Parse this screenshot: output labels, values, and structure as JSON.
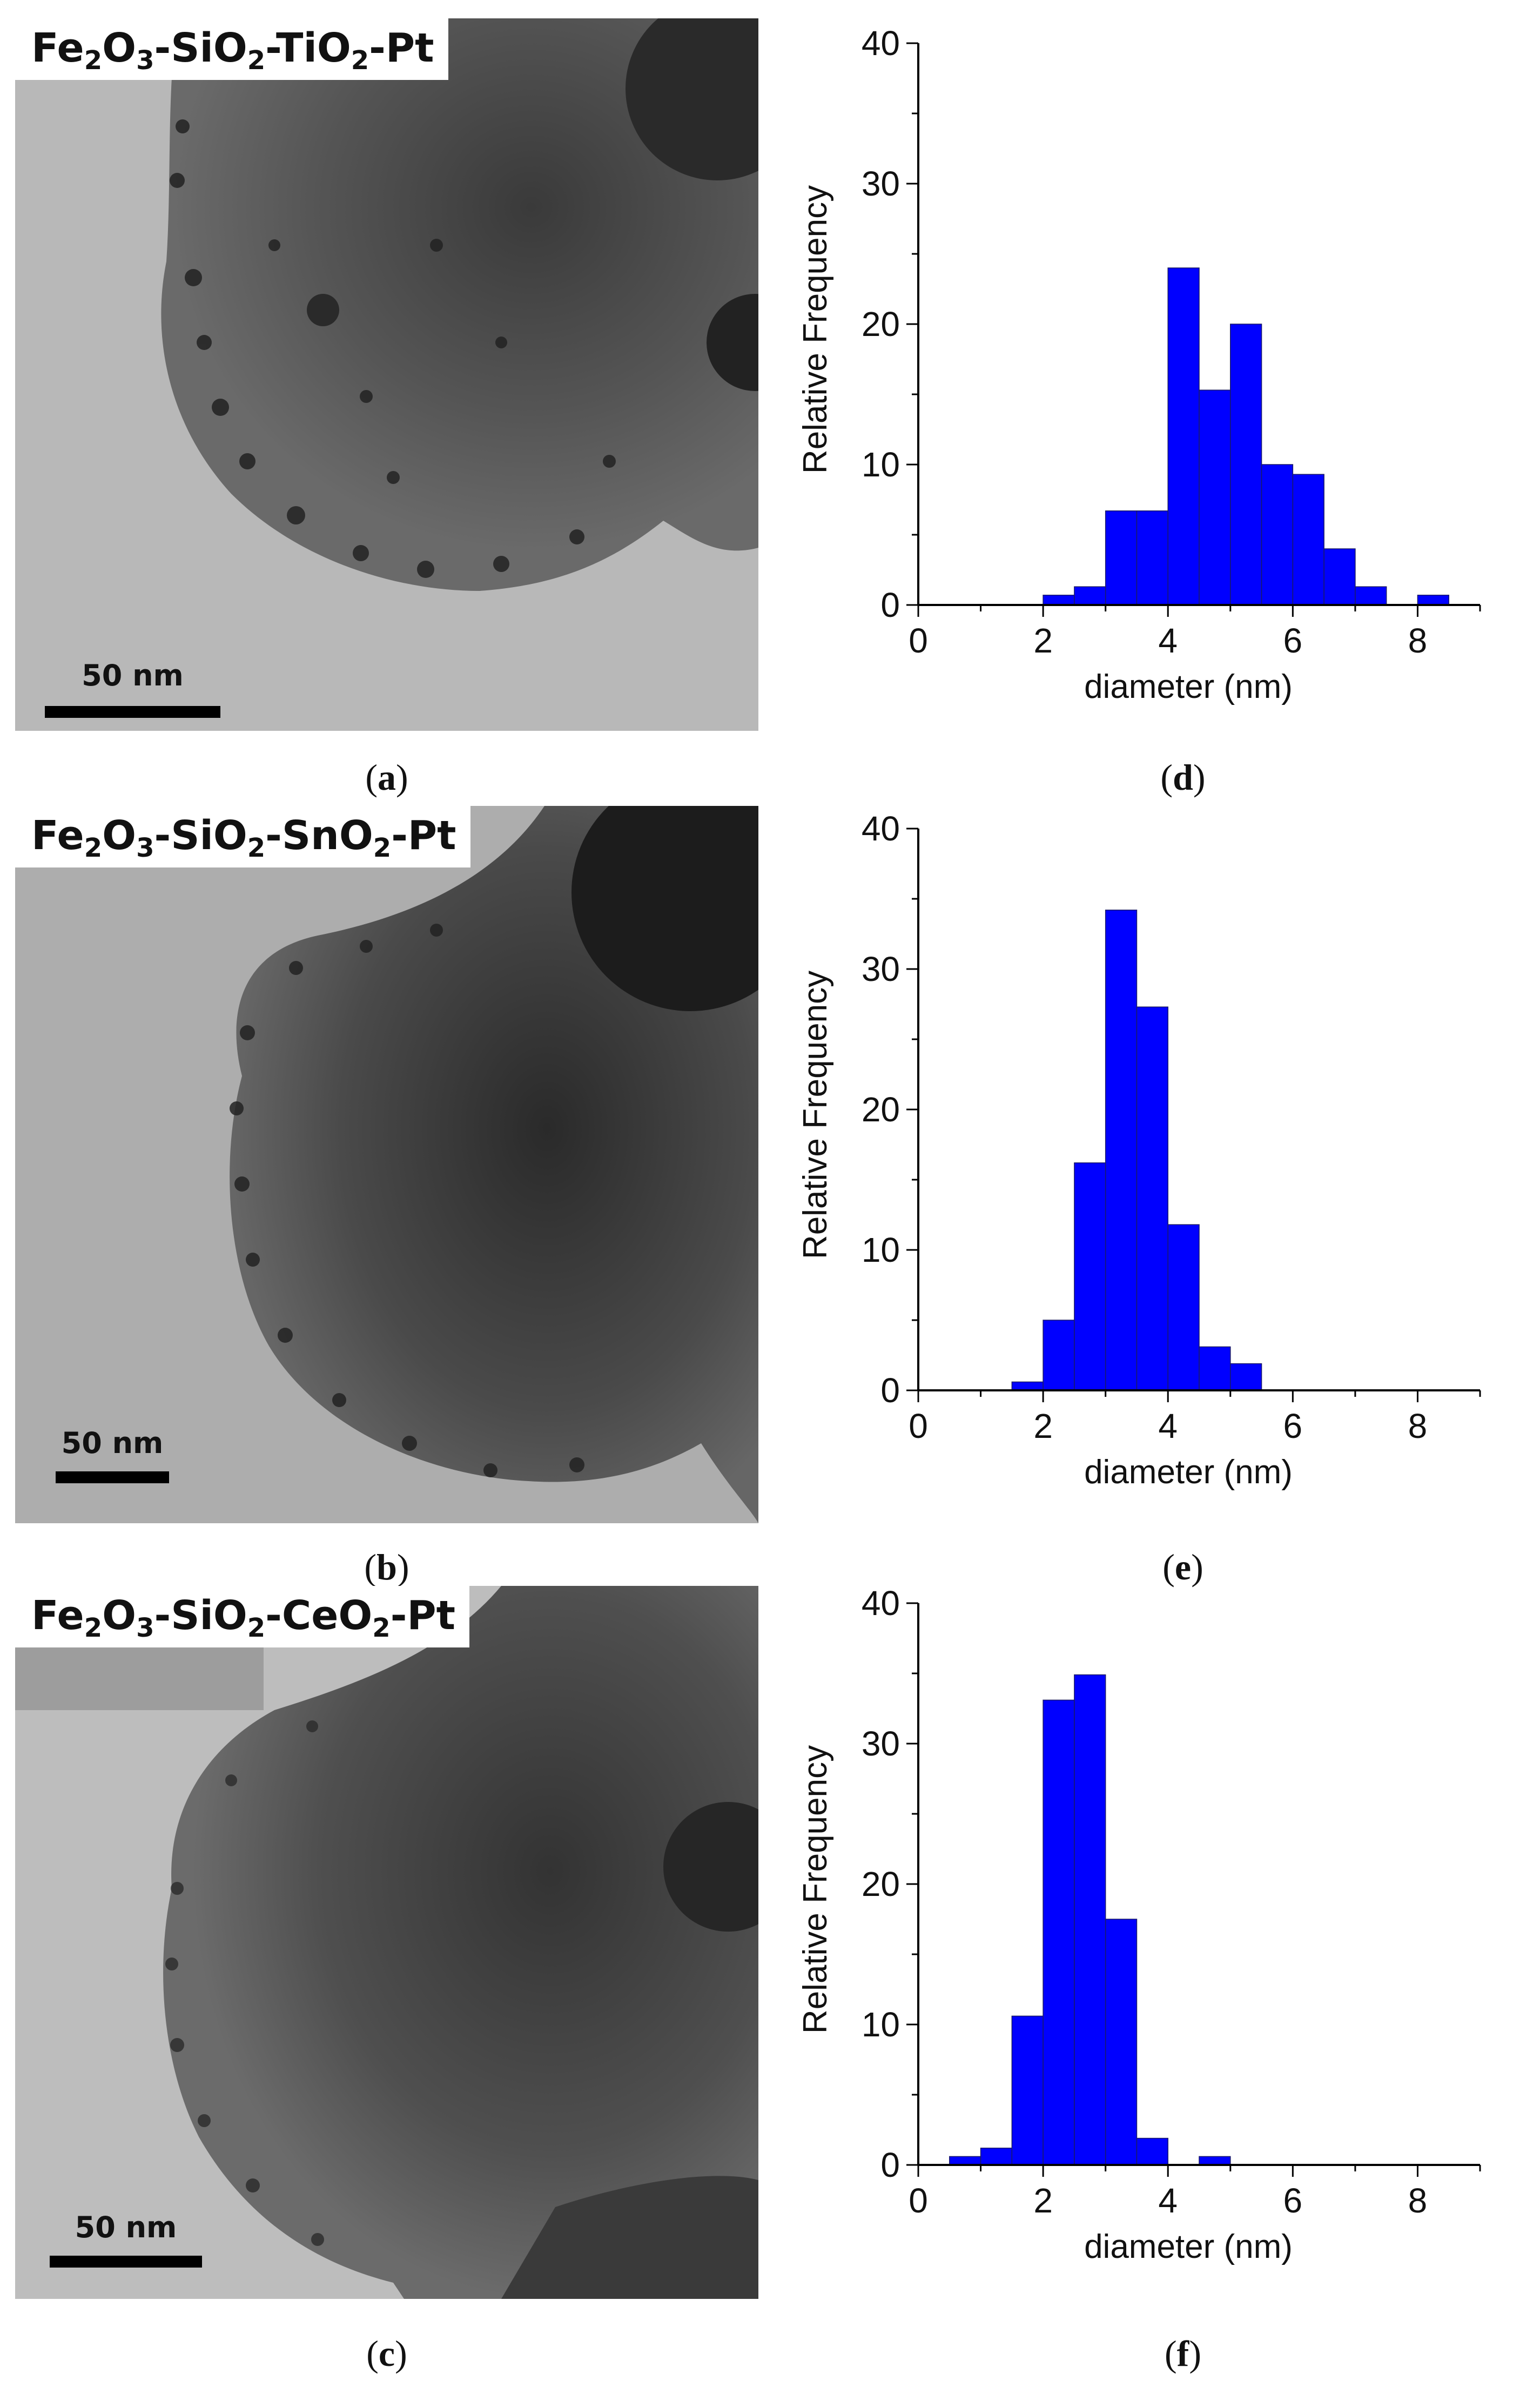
{
  "panels": {
    "a": {
      "title_parts": [
        "Fe",
        "2",
        "O",
        "3",
        "-SiO",
        "2",
        "-TiO",
        "2",
        "-Pt"
      ],
      "scale_label": "50 nm",
      "label": "a"
    },
    "b": {
      "title_parts": [
        "Fe",
        "2",
        "O",
        "3",
        "-SiO",
        "2",
        "-SnO",
        "2",
        "-Pt"
      ],
      "scale_label": "50 nm",
      "label": "b"
    },
    "c": {
      "title_parts": [
        "Fe",
        "2",
        "O",
        "3",
        "-SiO",
        "2",
        "-CeO",
        "2",
        "-Pt"
      ],
      "scale_label": "50 nm",
      "label": "c"
    },
    "d": {
      "label": "d"
    },
    "e": {
      "label": "e"
    },
    "f": {
      "label": "f"
    }
  },
  "chart_data": [
    {
      "id": "d",
      "type": "bar",
      "xlabel": "diameter (nm)",
      "ylabel": "Relative Frequency",
      "xlim": [
        0,
        9
      ],
      "ylim": [
        0,
        40
      ],
      "xticks": [
        0,
        2,
        4,
        6,
        8
      ],
      "yticks": [
        0,
        10,
        20,
        30,
        40
      ],
      "bin_width": 0.5,
      "bin_starts": [
        2.0,
        2.5,
        3.0,
        3.5,
        4.0,
        4.5,
        5.0,
        5.5,
        6.0,
        6.5,
        7.0,
        7.5,
        8.0
      ],
      "values": [
        0.7,
        1.3,
        6.7,
        6.7,
        24,
        15.3,
        20,
        10,
        9.3,
        4,
        1.3,
        0,
        0.7
      ],
      "bar_color": "#0000ff"
    },
    {
      "id": "e",
      "type": "bar",
      "xlabel": "diameter (nm)",
      "ylabel": "Relative Frequency",
      "xlim": [
        0,
        9
      ],
      "ylim": [
        0,
        40
      ],
      "xticks": [
        0,
        2,
        4,
        6,
        8
      ],
      "yticks": [
        0,
        10,
        20,
        30,
        40
      ],
      "bin_width": 0.5,
      "bin_starts": [
        1.5,
        2.0,
        2.5,
        3.0,
        3.5,
        4.0,
        4.5,
        5.0
      ],
      "values": [
        0.6,
        5,
        16.2,
        34.2,
        27.3,
        11.8,
        3.1,
        1.9
      ],
      "bar_color": "#0000ff"
    },
    {
      "id": "f",
      "type": "bar",
      "xlabel": "diameter (nm)",
      "ylabel": "Relative Frequency",
      "xlim": [
        0,
        9
      ],
      "ylim": [
        0,
        40
      ],
      "xticks": [
        0,
        2,
        4,
        6,
        8
      ],
      "yticks": [
        0,
        10,
        20,
        30,
        40
      ],
      "bin_width": 0.5,
      "bin_starts": [
        0.5,
        1.0,
        1.5,
        2.0,
        2.5,
        3.0,
        3.5,
        4.0,
        4.5
      ],
      "values": [
        0.6,
        1.2,
        10.6,
        33.1,
        34.9,
        17.5,
        1.9,
        0,
        0.6
      ],
      "bar_color": "#0000ff"
    }
  ]
}
